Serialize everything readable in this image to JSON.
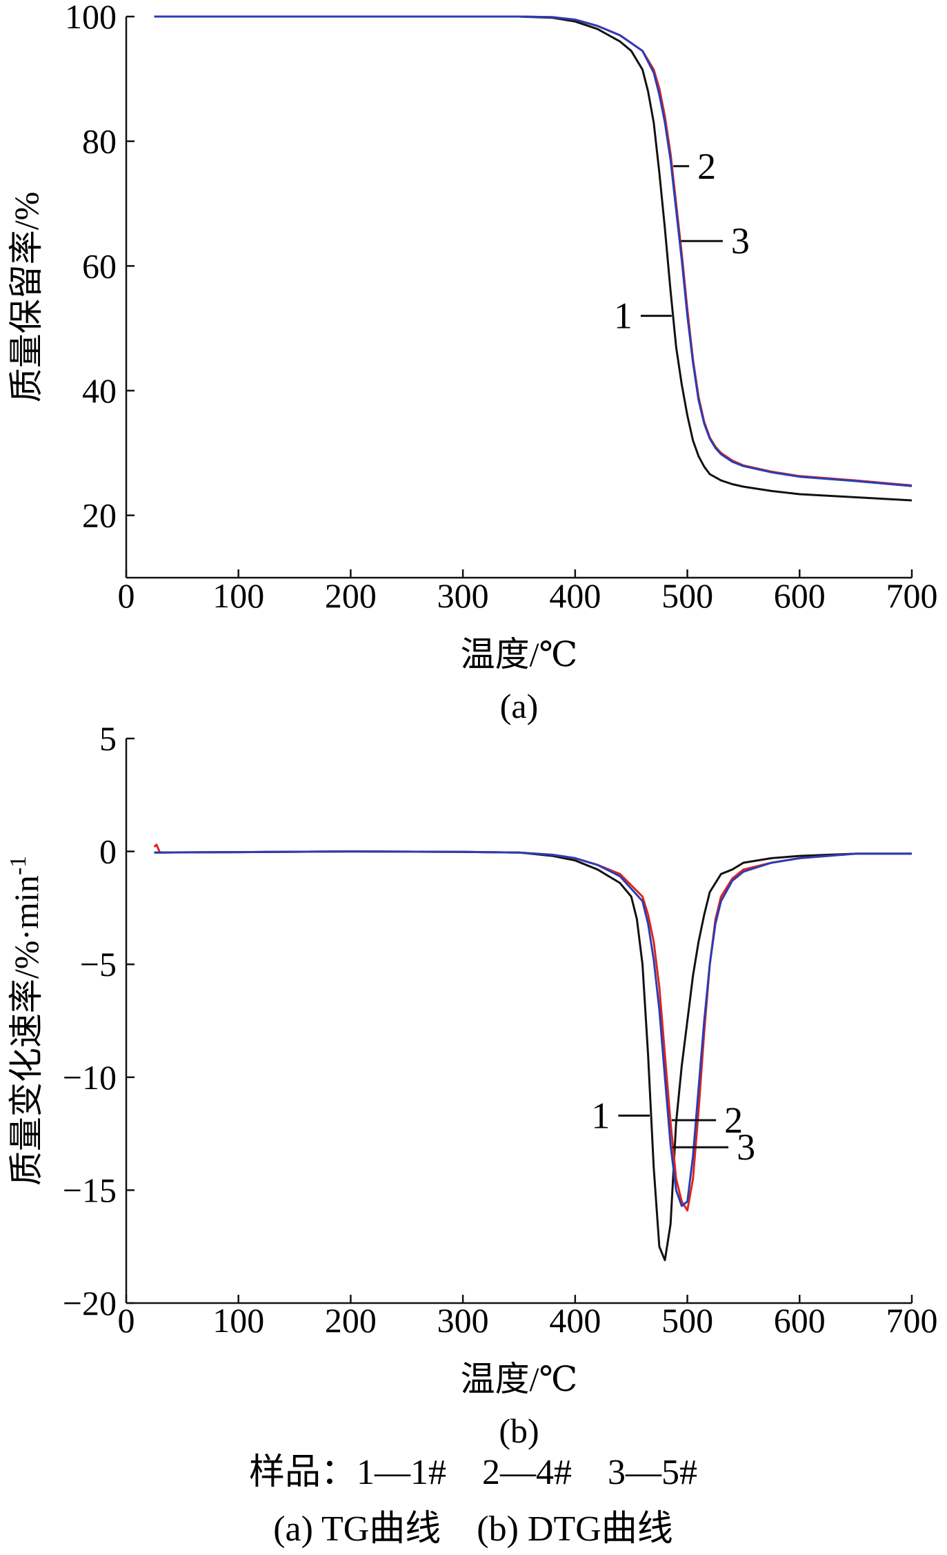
{
  "chart_data": [
    {
      "id": "a",
      "type": "line",
      "sublabel": "(a)",
      "xlabel": "温度/℃",
      "ylabel": "质量保留率/%",
      "xlim": [
        0,
        700
      ],
      "ylim": [
        10,
        100
      ],
      "xticks": [
        0,
        100,
        200,
        300,
        400,
        500,
        600,
        700
      ],
      "yticks": [
        20,
        40,
        60,
        80,
        100
      ],
      "grid": false,
      "series": [
        {
          "name": "1",
          "color": "#111111",
          "x": [
            25,
            100,
            200,
            300,
            350,
            380,
            400,
            420,
            440,
            450,
            460,
            465,
            470,
            475,
            480,
            485,
            490,
            495,
            500,
            505,
            510,
            515,
            520,
            530,
            540,
            550,
            575,
            600,
            650,
            700
          ],
          "y": [
            100,
            100,
            100,
            100,
            100,
            99.8,
            99.2,
            98,
            96,
            94.5,
            91.5,
            88,
            83,
            75,
            66,
            56,
            47,
            41,
            36,
            32,
            29.5,
            27.8,
            26.6,
            25.6,
            25,
            24.6,
            23.9,
            23.4,
            22.9,
            22.4
          ]
        },
        {
          "name": "2",
          "color": "#e0241c",
          "x": [
            25,
            100,
            200,
            300,
            350,
            380,
            400,
            420,
            440,
            460,
            470,
            475,
            480,
            485,
            490,
            495,
            500,
            505,
            510,
            515,
            520,
            525,
            530,
            540,
            550,
            575,
            600,
            650,
            700
          ],
          "y": [
            100,
            100,
            100,
            100,
            100,
            99.9,
            99.5,
            98.5,
            97,
            94.5,
            91.5,
            88.5,
            84,
            78,
            70,
            62,
            53,
            45,
            39,
            35,
            32.5,
            31,
            30,
            28.8,
            28,
            27,
            26.3,
            25.6,
            24.8
          ]
        },
        {
          "name": "3",
          "color": "#2a3db5",
          "x": [
            25,
            100,
            200,
            300,
            350,
            380,
            400,
            420,
            440,
            460,
            470,
            475,
            480,
            485,
            490,
            495,
            500,
            505,
            510,
            515,
            520,
            525,
            530,
            540,
            550,
            575,
            600,
            650,
            700
          ],
          "y": [
            100,
            100,
            100,
            100,
            100,
            99.9,
            99.5,
            98.5,
            97,
            94.5,
            91,
            87.5,
            83,
            77,
            69,
            61,
            52,
            44.5,
            38.5,
            34.7,
            32.3,
            30.8,
            29.8,
            28.6,
            27.9,
            26.9,
            26.2,
            25.5,
            24.7
          ]
        }
      ],
      "annotations": [
        {
          "text": "2",
          "x": 520,
          "y": 76
        },
        {
          "text": "3",
          "x": 550,
          "y": 64
        },
        {
          "text": "1",
          "x": 440,
          "y": 52
        }
      ]
    },
    {
      "id": "b",
      "type": "line",
      "sublabel": "(b)",
      "xlabel": "温度/℃",
      "ylabel": "质量变化速率/%·min",
      "ylabel_sup": "-1",
      "xlim": [
        0,
        700
      ],
      "ylim": [
        -20,
        5
      ],
      "xticks": [
        0,
        100,
        200,
        300,
        400,
        500,
        600,
        700
      ],
      "yticks": [
        5,
        0,
        -5,
        -10,
        -15,
        -20
      ],
      "yticklabels": [
        "5",
        "0",
        "−5",
        "−10",
        "−15",
        "−20"
      ],
      "grid": false,
      "series": [
        {
          "name": "1",
          "color": "#111111",
          "x": [
            25,
            100,
            200,
            300,
            350,
            380,
            400,
            420,
            440,
            450,
            455,
            460,
            465,
            470,
            475,
            480,
            485,
            490,
            495,
            500,
            505,
            510,
            515,
            520,
            530,
            540,
            550,
            575,
            600,
            650,
            700
          ],
          "y": [
            -0.05,
            -0.03,
            0,
            -0.02,
            -0.05,
            -0.2,
            -0.4,
            -0.8,
            -1.4,
            -2,
            -3,
            -5,
            -9,
            -14,
            -17.5,
            -18.1,
            -16.5,
            -12,
            -9.5,
            -7.5,
            -5.5,
            -4,
            -2.8,
            -1.8,
            -1,
            -0.8,
            -0.5,
            -0.3,
            -0.2,
            -0.1,
            -0.1
          ]
        },
        {
          "name": "2",
          "color": "#e0241c",
          "x": [
            25,
            27,
            30,
            100,
            200,
            300,
            350,
            380,
            400,
            420,
            440,
            460,
            465,
            470,
            475,
            480,
            485,
            490,
            495,
            500,
            505,
            510,
            515,
            520,
            525,
            530,
            540,
            550,
            575,
            600,
            650,
            700
          ],
          "y": [
            0.2,
            0.3,
            -0.05,
            -0.03,
            0,
            -0.02,
            -0.05,
            -0.15,
            -0.3,
            -0.6,
            -1,
            -2,
            -2.8,
            -4,
            -6,
            -9,
            -12,
            -14.5,
            -15.5,
            -15.9,
            -14.5,
            -11.5,
            -8,
            -5,
            -3,
            -2,
            -1.2,
            -0.8,
            -0.5,
            -0.3,
            -0.1,
            -0.1
          ]
        },
        {
          "name": "3",
          "color": "#2a3db5",
          "x": [
            25,
            100,
            200,
            300,
            350,
            380,
            400,
            420,
            440,
            460,
            465,
            470,
            475,
            480,
            485,
            490,
            495,
            500,
            505,
            510,
            515,
            520,
            525,
            530,
            540,
            550,
            575,
            600,
            650,
            700
          ],
          "y": [
            -0.05,
            -0.03,
            0,
            -0.02,
            -0.05,
            -0.15,
            -0.3,
            -0.6,
            -1.1,
            -2.2,
            -3.2,
            -4.8,
            -7,
            -10,
            -13,
            -15,
            -15.7,
            -15.5,
            -13.5,
            -10.5,
            -7.5,
            -5,
            -3.2,
            -2.2,
            -1.3,
            -0.9,
            -0.5,
            -0.3,
            -0.1,
            -0.1
          ]
        }
      ],
      "annotations": [
        {
          "text": "1",
          "x": 420,
          "y": -11.7
        },
        {
          "text": "2",
          "x": 544,
          "y": -11.9
        },
        {
          "text": "3",
          "x": 555,
          "y": -13.1
        }
      ]
    }
  ],
  "legend_caption": "样品：1—1#　2—4#　3—5#",
  "figure_caption": "(a) TG曲线　(b) DTG曲线"
}
